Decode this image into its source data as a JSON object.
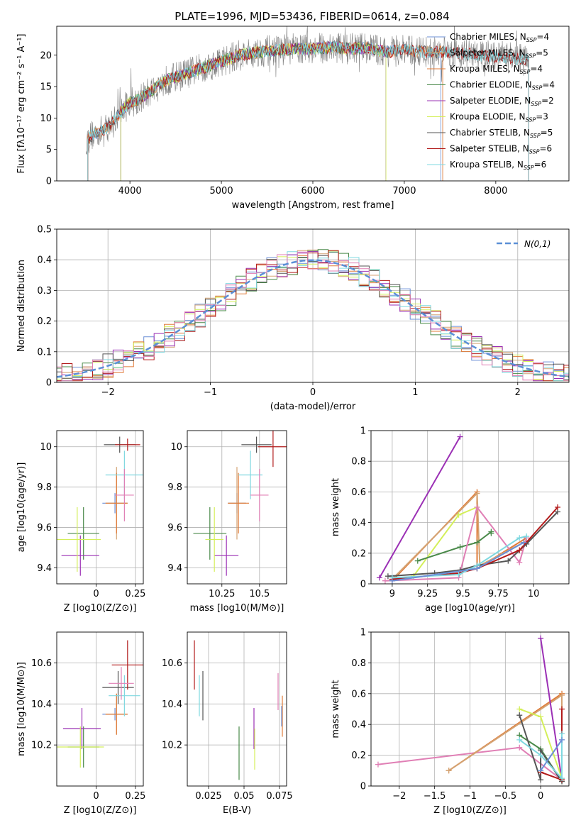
{
  "figure": {
    "title": "PLATE=1996, MJD=53436, FIBERID=0614, z=0.084"
  },
  "colors": {
    "Chabrier MILES": "#6b8fd6",
    "Salpeter MILES": "#d4a373",
    "Kroupa MILES": "#e07b39",
    "Chabrier ELODIE": "#4a8a4a",
    "Salpeter ELODIE": "#9b30b5",
    "Kroupa ELODIE": "#d4ef5a",
    "Chabrier STELIB": "#555555",
    "Salpeter STELIB": "#b21b1b",
    "Kroupa STELIB": "#7fd8e0",
    "pink": "#e07fb5",
    "gaussian": "#5b8fd6"
  },
  "chart_data": [
    {
      "id": "spectrum",
      "type": "line",
      "title": "PLATE=1996, MJD=53436, FIBERID=0614, z=0.084",
      "xlabel": "wavelength [Angstrom, rest frame]",
      "ylabel": "Flux [fλ10⁻¹⁷ erg cm⁻² s⁻¹ A⁻¹]",
      "xlim": [
        3200,
        8800
      ],
      "ylim": [
        0,
        24.6
      ],
      "xticks": [
        4000,
        5000,
        6000,
        7000,
        8000
      ],
      "yticks": [
        0,
        5,
        10,
        15,
        20
      ],
      "legend_position": "right",
      "legend": [
        "Chabrier MILES, N_SSP=4",
        "Salpeter MILES, N_SSP=5",
        "Kroupa MILES, N_SSP=4",
        "Chabrier ELODIE, N_SSP=4",
        "Salpeter ELODIE, N_SSP=2",
        "Kroupa ELODIE, N_SSP=3",
        "Chabrier STELIB, N_SSP=5",
        "Salpeter STELIB, N_SSP=6",
        "Kroupa STELIB, N_SSP=6"
      ],
      "legend_main": [
        "Chabrier MILES, N",
        "Salpeter MILES, N",
        "Kroupa MILES, N",
        "Chabrier ELODIE, N",
        "Salpeter ELODIE, N",
        "Kroupa ELODIE, N",
        "Chabrier STELIB, N",
        "Salpeter STELIB, N",
        "Kroupa STELIB, N"
      ],
      "legend_sub": [
        "SSP",
        "SSP",
        "SSP",
        "SSP",
        "SSP",
        "SSP",
        "SSP",
        "SSP",
        "SSP"
      ],
      "legend_val": [
        "=4",
        "=5",
        "=4",
        "=4",
        "=2",
        "=3",
        "=5",
        "=6",
        "=6"
      ],
      "continuum": {
        "x": [
          3500,
          3600,
          3700,
          3800,
          3900,
          4000,
          4100,
          4200,
          4300,
          4400,
          4600,
          4800,
          5000,
          5200,
          5400,
          5600,
          5800,
          6000,
          6200,
          6400,
          6600,
          6800,
          7000,
          7200,
          7400,
          7600,
          7800,
          8000,
          8200,
          8400
        ],
        "y": [
          6,
          7.5,
          8,
          9,
          11,
          12.5,
          13,
          14,
          15,
          16,
          17,
          18,
          19,
          20,
          20.5,
          20.8,
          21,
          21,
          21.3,
          21,
          21.2,
          20.5,
          20.8,
          20.5,
          20.5,
          20.3,
          20,
          19.8,
          19.5,
          19
        ]
      }
    },
    {
      "id": "residuals",
      "type": "histogram",
      "xlabel": "(data-model)/error",
      "ylabel": "Normed distribution",
      "xlim": [
        -2.5,
        2.5
      ],
      "ylim": [
        0,
        0.5
      ],
      "xticks": [
        -2,
        -1,
        0,
        1,
        2
      ],
      "yticks": [
        0.0,
        0.1,
        0.2,
        0.3,
        0.4,
        0.5
      ],
      "legend": [
        "N(0,1)"
      ],
      "legend_position": "top-right",
      "bin_width": 0.1
    },
    {
      "id": "age-vs-Z",
      "type": "scatter",
      "xlabel": "Z [log10(Z/Z⊙)]",
      "ylabel": "age [log10(age/yr)]",
      "xlim": [
        -0.25,
        0.3
      ],
      "ylim": [
        9.32,
        10.08
      ],
      "xticks": [
        0.0,
        0.25
      ],
      "yticks": [
        9.4,
        9.6,
        9.8,
        10.0
      ],
      "points": [
        {
          "model": "Chabrier MILES",
          "x": 0.12,
          "y": 9.72,
          "xerr": 0.08,
          "yerr": 0.05
        },
        {
          "model": "Salpeter MILES",
          "x": 0.13,
          "y": 9.72,
          "xerr": 0.07,
          "yerr": 0.18
        },
        {
          "model": "Kroupa MILES",
          "x": 0.13,
          "y": 9.72,
          "xerr": 0.07,
          "yerr": 0.15
        },
        {
          "model": "Chabrier ELODIE",
          "x": -0.08,
          "y": 9.57,
          "xerr": 0.1,
          "yerr": 0.13
        },
        {
          "model": "Salpeter ELODIE",
          "x": -0.1,
          "y": 9.46,
          "xerr": 0.12,
          "yerr": 0.1
        },
        {
          "model": "Kroupa ELODIE",
          "x": -0.12,
          "y": 9.54,
          "xerr": 0.15,
          "yerr": 0.16
        },
        {
          "model": "Chabrier STELIB",
          "x": 0.15,
          "y": 10.01,
          "xerr": 0.1,
          "yerr": 0.04
        },
        {
          "model": "Salpeter STELIB",
          "x": 0.2,
          "y": 10.01,
          "xerr": 0.08,
          "yerr": 0.03
        },
        {
          "model": "Kroupa STELIB",
          "x": 0.18,
          "y": 9.86,
          "xerr": 0.12,
          "yerr": 0.12
        },
        {
          "model": "pink",
          "x": 0.18,
          "y": 9.76,
          "xerr": 0.06,
          "yerr": 0.13
        }
      ]
    },
    {
      "id": "age-vs-mass",
      "type": "scatter",
      "xlabel": "mass [log10(M/M⊙)]",
      "xlim": [
        10.02,
        10.68
      ],
      "ylim": [
        9.32,
        10.08
      ],
      "xticks": [
        10.25,
        10.5
      ],
      "yticks": [
        9.4,
        9.6,
        9.8,
        10.0
      ],
      "points": [
        {
          "model": "Chabrier MILES",
          "x": 10.35,
          "y": 9.72,
          "xerr": 0.06,
          "yerr": 0.05
        },
        {
          "model": "Salpeter MILES",
          "x": 10.35,
          "y": 9.72,
          "xerr": 0.06,
          "yerr": 0.18
        },
        {
          "model": "Kroupa MILES",
          "x": 10.36,
          "y": 9.72,
          "xerr": 0.07,
          "yerr": 0.15
        },
        {
          "model": "Chabrier ELODIE",
          "x": 10.17,
          "y": 9.57,
          "xerr": 0.11,
          "yerr": 0.13
        },
        {
          "model": "Salpeter ELODIE",
          "x": 10.28,
          "y": 9.46,
          "xerr": 0.08,
          "yerr": 0.1
        },
        {
          "model": "Kroupa ELODIE",
          "x": 10.2,
          "y": 9.54,
          "xerr": 0.06,
          "yerr": 0.16
        },
        {
          "model": "Chabrier STELIB",
          "x": 10.48,
          "y": 10.01,
          "xerr": 0.1,
          "yerr": 0.04
        },
        {
          "model": "Salpeter STELIB",
          "x": 10.59,
          "y": 10.0,
          "xerr": 0.1,
          "yerr": 0.1
        },
        {
          "model": "Kroupa STELIB",
          "x": 10.44,
          "y": 9.86,
          "xerr": 0.08,
          "yerr": 0.12
        },
        {
          "model": "pink",
          "x": 10.5,
          "y": 9.76,
          "xerr": 0.06,
          "yerr": 0.13
        }
      ]
    },
    {
      "id": "weight-vs-age",
      "type": "line",
      "xlabel": "age [log10(age/yr)]",
      "ylabel": "mass weight",
      "xlim": [
        8.85,
        10.25
      ],
      "ylim": [
        0,
        1.0
      ],
      "xticks": [
        9.0,
        9.25,
        9.5,
        9.75,
        10.0
      ],
      "yticks": [
        0.0,
        0.2,
        0.4,
        0.6,
        0.8,
        1.0
      ],
      "series": [
        {
          "model": "Salpeter ELODIE",
          "x": [
            8.91,
            9.48
          ],
          "y": [
            0.04,
            0.96
          ]
        },
        {
          "model": "Kroupa MILES",
          "x": [
            9.0,
            9.6,
            9.6,
            9.95
          ],
          "y": [
            0.02,
            0.6,
            0.1,
            0.3
          ]
        },
        {
          "model": "Salpeter MILES",
          "x": [
            9.0,
            9.6,
            9.62,
            9.95
          ],
          "y": [
            0.03,
            0.59,
            0.12,
            0.28
          ]
        },
        {
          "model": "Kroupa ELODIE",
          "x": [
            9.15,
            9.47,
            9.6
          ],
          "y": [
            0.05,
            0.45,
            0.5
          ]
        },
        {
          "model": "Chabrier ELODIE",
          "x": [
            9.18,
            9.48,
            9.6,
            9.7,
            9.7
          ],
          "y": [
            0.15,
            0.24,
            0.27,
            0.34,
            0.33
          ]
        },
        {
          "model": "pink",
          "x": [
            8.95,
            9.47,
            9.6,
            9.9,
            9.95
          ],
          "y": [
            0.02,
            0.04,
            0.5,
            0.14,
            0.3
          ]
        },
        {
          "model": "Chabrier STELIB",
          "x": [
            8.97,
            9.3,
            9.48,
            9.6,
            9.82,
            9.95,
            10.17
          ],
          "y": [
            0.05,
            0.07,
            0.09,
            0.12,
            0.15,
            0.26,
            0.47
          ]
        },
        {
          "model": "Salpeter STELIB",
          "x": [
            9.0,
            9.47,
            9.6,
            9.9,
            10.17
          ],
          "y": [
            0.03,
            0.07,
            0.1,
            0.22,
            0.5
          ]
        },
        {
          "model": "Kroupa STELIB",
          "x": [
            9.0,
            9.47,
            9.6,
            9.9,
            9.95
          ],
          "y": [
            0.04,
            0.06,
            0.12,
            0.3,
            0.31
          ]
        },
        {
          "model": "Chabrier MILES",
          "x": [
            9.0,
            9.6,
            9.93
          ],
          "y": [
            0.02,
            0.1,
            0.27
          ]
        }
      ]
    },
    {
      "id": "mass-vs-Z",
      "type": "scatter",
      "xlabel": "Z [log10(Z/Z⊙)]",
      "ylabel": "mass [log10(M/M⊙)]",
      "xlim": [
        -0.25,
        0.3
      ],
      "ylim": [
        10.0,
        10.75
      ],
      "xticks": [
        0.0,
        0.25
      ],
      "yticks": [
        10.2,
        10.4,
        10.6
      ],
      "points": [
        {
          "model": "Chabrier MILES",
          "x": 0.12,
          "y": 10.35,
          "xerr": 0.08,
          "yerr": 0.03
        },
        {
          "model": "Salpeter MILES",
          "x": 0.13,
          "y": 10.35,
          "xerr": 0.07,
          "yerr": 0.1
        },
        {
          "model": "Kroupa MILES",
          "x": 0.13,
          "y": 10.35,
          "xerr": 0.07,
          "yerr": 0.1
        },
        {
          "model": "Chabrier ELODIE",
          "x": -0.08,
          "y": 10.19,
          "xerr": 0.1,
          "yerr": 0.1
        },
        {
          "model": "Salpeter ELODIE",
          "x": -0.09,
          "y": 10.28,
          "xerr": 0.12,
          "yerr": 0.1
        },
        {
          "model": "Kroupa ELODIE",
          "x": -0.1,
          "y": 10.19,
          "xerr": 0.15,
          "yerr": 0.1
        },
        {
          "model": "Chabrier STELIB",
          "x": 0.14,
          "y": 10.48,
          "xerr": 0.1,
          "yerr": 0.08
        },
        {
          "model": "Salpeter STELIB",
          "x": 0.2,
          "y": 10.59,
          "xerr": 0.1,
          "yerr": 0.12
        },
        {
          "model": "Kroupa STELIB",
          "x": 0.18,
          "y": 10.44,
          "xerr": 0.1,
          "yerr": 0.1
        },
        {
          "model": "pink",
          "x": 0.16,
          "y": 10.5,
          "xerr": 0.08,
          "yerr": 0.08
        }
      ]
    },
    {
      "id": "mass-vs-EBV",
      "type": "scatter",
      "xlabel": "E(B-V)",
      "xlim": [
        0.01,
        0.08
      ],
      "ylim": [
        10.0,
        10.75
      ],
      "xticks": [
        0.025,
        0.05,
        0.075
      ],
      "yticks": [
        10.2,
        10.4,
        10.6
      ],
      "points": [
        {
          "model": "Salpeter STELIB",
          "x": 0.015,
          "y": 10.59,
          "yerr": 0.12
        },
        {
          "model": "Kroupa STELIB",
          "x": 0.0185,
          "y": 10.44,
          "yerr": 0.1
        },
        {
          "model": "Chabrier STELIB",
          "x": 0.021,
          "y": 10.44,
          "yerr": 0.12
        },
        {
          "model": "Chabrier ELODIE",
          "x": 0.0465,
          "y": 10.16,
          "yerr": 0.13
        },
        {
          "model": "Salpeter ELODIE",
          "x": 0.057,
          "y": 10.28,
          "yerr": 0.1
        },
        {
          "model": "Kroupa ELODIE",
          "x": 0.0575,
          "y": 10.18,
          "yerr": 0.1
        },
        {
          "model": "pink",
          "x": 0.074,
          "y": 10.46,
          "yerr": 0.09
        },
        {
          "model": "Kroupa MILES",
          "x": 0.077,
          "y": 10.34,
          "yerr": 0.1
        },
        {
          "model": "Chabrier MILES",
          "x": 0.0765,
          "y": 10.34,
          "yerr": 0.05
        }
      ]
    },
    {
      "id": "weight-vs-Z",
      "type": "line",
      "xlabel": "Z [log10(Z/Z⊙)]",
      "ylabel": "mass weight",
      "xlim": [
        -2.4,
        0.4
      ],
      "ylim": [
        0,
        1.0
      ],
      "xticks": [
        -2.0,
        -1.5,
        -1.0,
        -0.5,
        0.0
      ],
      "yticks": [
        0.0,
        0.2,
        0.4,
        0.6,
        0.8,
        1.0
      ],
      "series": [
        {
          "model": "pink",
          "x": [
            -2.3,
            -0.3,
            0.3,
            0.3
          ],
          "y": [
            0.14,
            0.25,
            0.04,
            0.3
          ]
        },
        {
          "model": "Kroupa MILES",
          "x": [
            -1.3,
            0.3,
            0.3
          ],
          "y": [
            0.1,
            0.6,
            0.04
          ]
        },
        {
          "model": "Salpeter MILES",
          "x": [
            -1.3,
            0.3,
            0.3
          ],
          "y": [
            0.1,
            0.59,
            0.05
          ]
        },
        {
          "model": "Salpeter ELODIE",
          "x": [
            0.0,
            0.3
          ],
          "y": [
            0.96,
            0.04
          ]
        },
        {
          "model": "Kroupa ELODIE",
          "x": [
            -0.3,
            0.0,
            0.3
          ],
          "y": [
            0.5,
            0.45,
            0.05
          ]
        },
        {
          "model": "Chabrier ELODIE",
          "x": [
            -0.3,
            0.0,
            0.3
          ],
          "y": [
            0.33,
            0.24,
            0.03
          ]
        },
        {
          "model": "Chabrier STELIB",
          "x": [
            -0.3,
            0.0,
            0.0,
            0.3
          ],
          "y": [
            0.46,
            0.04,
            0.23,
            0.03
          ]
        },
        {
          "model": "Salpeter STELIB",
          "x": [
            0.0,
            0.3,
            0.3
          ],
          "y": [
            0.09,
            0.04,
            0.5
          ]
        },
        {
          "model": "Kroupa STELIB",
          "x": [
            -0.3,
            0.0,
            0.3,
            0.3
          ],
          "y": [
            0.3,
            0.2,
            0.05,
            0.34
          ]
        },
        {
          "model": "Chabrier MILES",
          "x": [
            0.0,
            0.3
          ],
          "y": [
            0.1,
            0.3
          ]
        }
      ]
    }
  ]
}
